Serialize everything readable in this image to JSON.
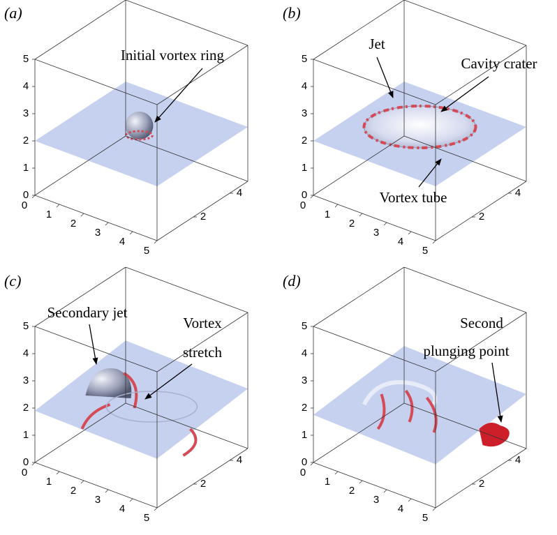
{
  "axes": {
    "x_ticks": [
      0,
      1,
      2,
      3,
      4,
      5
    ],
    "y_ticks": [
      2,
      4
    ],
    "z_ticks": [
      0,
      1,
      2,
      3,
      4,
      5
    ]
  },
  "panels": [
    {
      "label": "(a)",
      "annotations": [
        [
          "Initial vortex ring"
        ]
      ]
    },
    {
      "label": "(b)",
      "annotations": [
        [
          "Jet"
        ],
        [
          "Cavity crater"
        ],
        [
          "Vortex tube"
        ]
      ]
    },
    {
      "label": "(c)",
      "annotations": [
        [
          "Secondary jet"
        ],
        [
          "Vortex",
          "stretch"
        ]
      ]
    },
    {
      "label": "(d)",
      "annotations": [
        [
          "Second",
          "plunging point"
        ]
      ]
    }
  ]
}
